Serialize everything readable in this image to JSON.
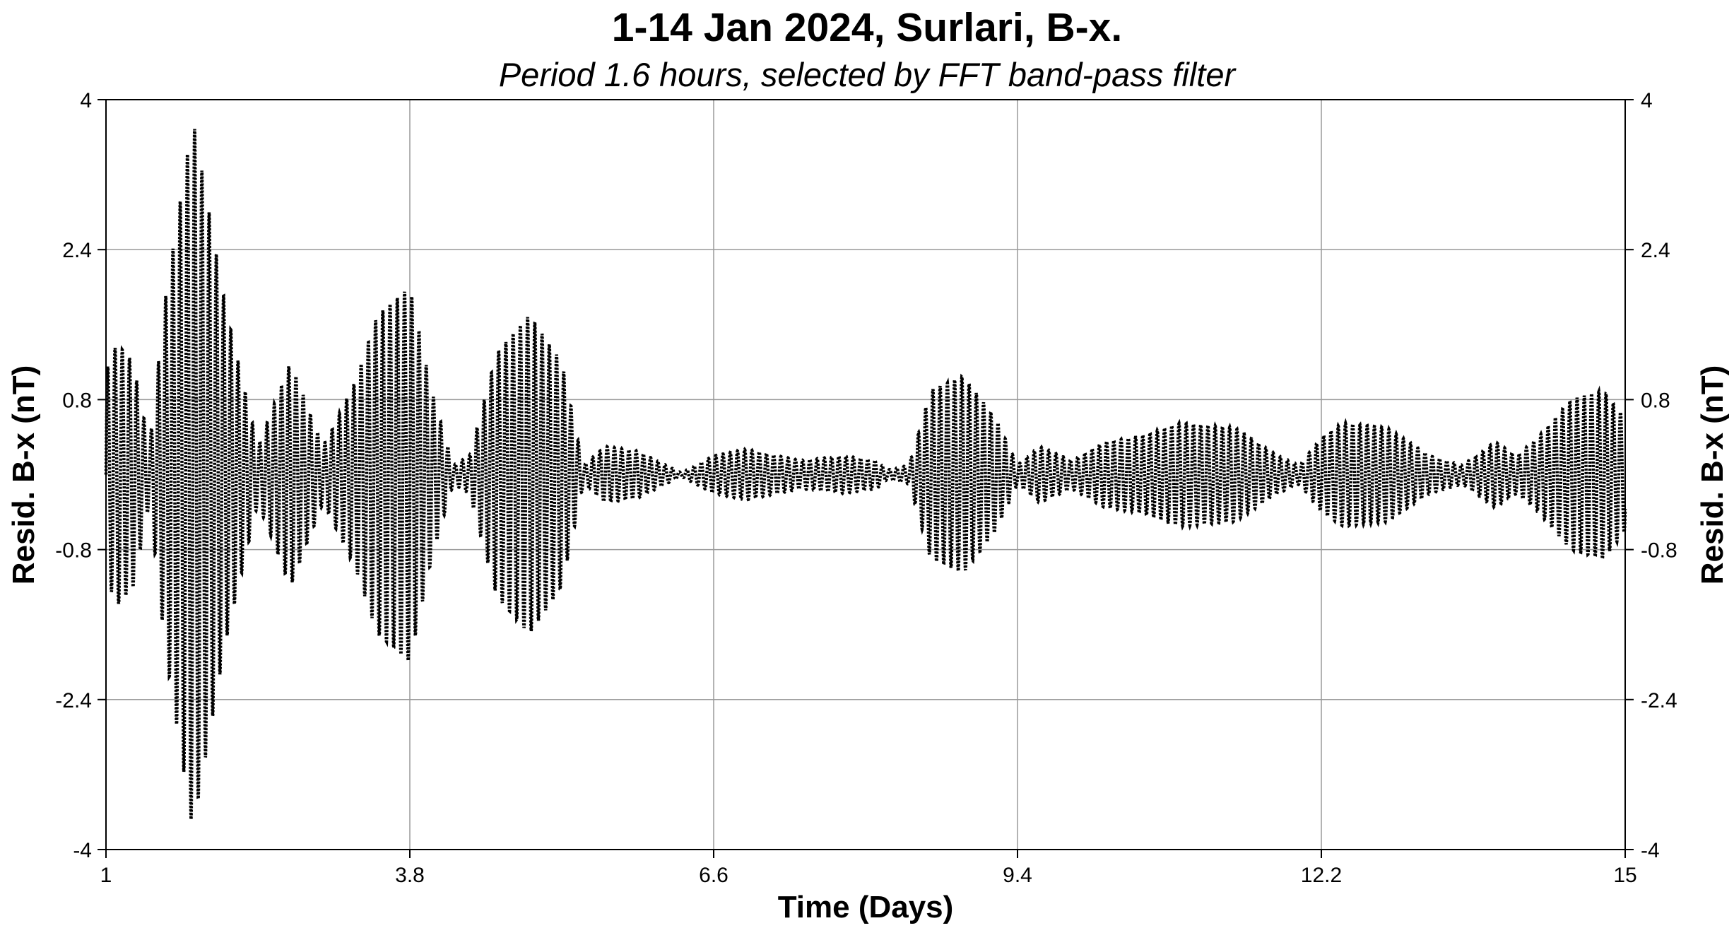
{
  "chart_data": {
    "type": "line",
    "title": "1-14 Jan 2024, Surlari, B-x.",
    "subtitle": "Period 1.6 hours, selected by FFT band-pass filter",
    "xlabel": "Time (Days)",
    "ylabel": "Resid. B-x (nT)",
    "ylabel_right": "Resid. B-x (nT)",
    "xlim": [
      1,
      15
    ],
    "ylim": [
      -4,
      4
    ],
    "x_ticks": [
      "1",
      "3.8",
      "6.6",
      "9.4",
      "12.2",
      "15"
    ],
    "y_ticks": [
      "4",
      "2.4",
      "0.8",
      "-0.8",
      "-2.4",
      "-4"
    ],
    "grid": true,
    "series": [
      {
        "period_days": 0.0667,
        "color": "#000000",
        "style": "dotted-dense",
        "envelope": {
          "t": [
            1.0,
            1.1,
            1.25,
            1.4,
            1.55,
            1.8,
            2.1,
            2.4,
            2.7,
            3.0,
            3.3,
            3.5,
            3.8,
            4.0,
            4.2,
            4.35,
            4.6,
            4.9,
            5.2,
            5.4,
            5.6,
            5.9,
            6.3,
            6.6,
            6.9,
            7.4,
            7.8,
            8.1,
            8.2,
            8.4,
            8.6,
            8.9,
            9.2,
            9.4,
            9.6,
            9.9,
            10.2,
            10.5,
            10.9,
            11.4,
            11.8,
            12.0,
            12.2,
            12.4,
            12.8,
            13.2,
            13.5,
            13.8,
            14.0,
            14.2,
            14.5,
            14.8,
            15.0
          ],
          "amplitude": [
            1.1,
            1.4,
            1.2,
            0.3,
            1.9,
            3.8,
            1.8,
            0.3,
            1.2,
            0.3,
            1.0,
            1.7,
            2.0,
            0.9,
            0.1,
            0.2,
            1.3,
            1.7,
            1.2,
            0.1,
            0.3,
            0.25,
            0.02,
            0.2,
            0.27,
            0.15,
            0.2,
            0.15,
            0.05,
            0.1,
            0.9,
            1.05,
            0.6,
            0.1,
            0.3,
            0.15,
            0.35,
            0.4,
            0.55,
            0.5,
            0.2,
            0.1,
            0.4,
            0.55,
            0.5,
            0.2,
            0.1,
            0.35,
            0.2,
            0.4,
            0.8,
            0.9,
            0.6
          ]
        }
      }
    ]
  }
}
